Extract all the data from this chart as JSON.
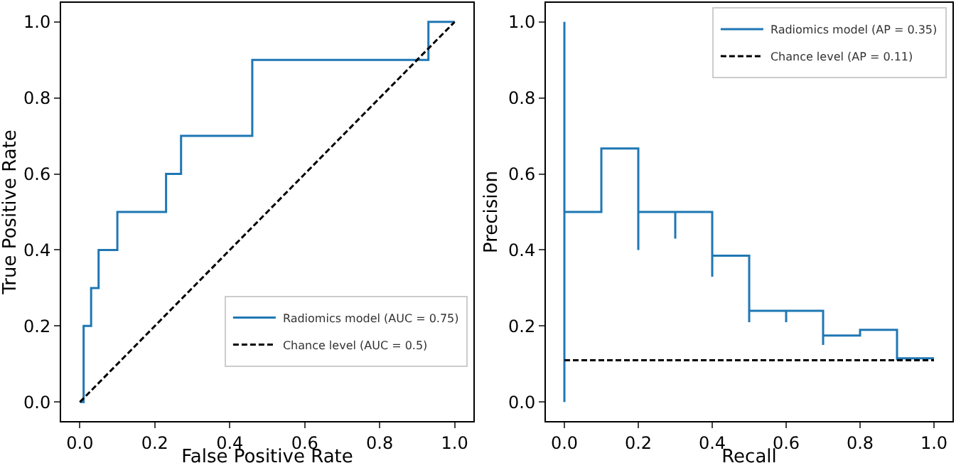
{
  "chart_data": [
    {
      "type": "line",
      "xlabel": "False Positive Rate",
      "ylabel": "True Positive Rate",
      "xlim": [
        -0.05,
        1.05
      ],
      "ylim": [
        -0.05,
        1.05
      ],
      "xticks": [
        {
          "value": 0,
          "label": "0.0"
        },
        {
          "value": 0.2,
          "label": "0.2"
        },
        {
          "value": 0.4,
          "label": "0.4"
        },
        {
          "value": 0.6,
          "label": "0.6"
        },
        {
          "value": 0.8,
          "label": "0.8"
        },
        {
          "value": 1,
          "label": "1.0"
        }
      ],
      "yticks": [
        {
          "value": 0,
          "label": "0.0"
        },
        {
          "value": 0.2,
          "label": "0.2"
        },
        {
          "value": 0.4,
          "label": "0.4"
        },
        {
          "value": 0.6,
          "label": "0.6"
        },
        {
          "value": 0.8,
          "label": "0.8"
        },
        {
          "value": 1,
          "label": "1.0"
        }
      ],
      "legend": "bottom right",
      "marker": "none",
      "series": [
        {
          "name": "Radiomics model (AUC = 0.75)",
          "type": "step",
          "color": "#1f77b4",
          "line_style": "solid",
          "x": [
            0,
            0.01,
            0.03,
            0.05,
            0.1,
            0.23,
            0.27,
            0.46,
            0.93,
            1.0
          ],
          "values": [
            0,
            0.2,
            0.3,
            0.4,
            0.5,
            0.6,
            0.7,
            0.9,
            1.0,
            1.0
          ]
        },
        {
          "name": "Chance level (AUC = 0.5)",
          "type": "line",
          "color": "#000000",
          "line_style": "dashed",
          "x": [
            0,
            1
          ],
          "values": [
            0,
            1
          ]
        }
      ]
    },
    {
      "type": "line",
      "xlabel": "Recall",
      "ylabel": "Precision",
      "xlim": [
        -0.05,
        1.05
      ],
      "ylim": [
        -0.05,
        1.05
      ],
      "xticks": [
        {
          "value": 0,
          "label": "0.0"
        },
        {
          "value": 0.2,
          "label": "0.2"
        },
        {
          "value": 0.4,
          "label": "0.4"
        },
        {
          "value": 0.6,
          "label": "0.6"
        },
        {
          "value": 0.8,
          "label": "0.8"
        },
        {
          "value": 1,
          "label": "1.0"
        }
      ],
      "yticks": [
        {
          "value": 0,
          "label": "0.0"
        },
        {
          "value": 0.2,
          "label": "0.2"
        },
        {
          "value": 0.4,
          "label": "0.4"
        },
        {
          "value": 0.6,
          "label": "0.6"
        },
        {
          "value": 0.8,
          "label": "0.8"
        },
        {
          "value": 1,
          "label": "1.0"
        }
      ],
      "legend": "top right",
      "marker": "none",
      "series": [
        {
          "name": "Radiomics model (AP = 0.35)",
          "type": "line",
          "color": "#1f77b4",
          "line_style": "solid",
          "x": [
            0,
            0,
            0,
            0.1,
            0.1,
            0.2,
            0.2,
            0.2,
            0.3,
            0.3,
            0.3,
            0.4,
            0.4,
            0.4,
            0.5,
            0.5,
            0.5,
            0.6,
            0.6,
            0.6,
            0.7,
            0.7,
            0.7,
            0.8,
            0.8,
            0.9,
            0.9,
            0.9,
            1.0
          ],
          "values": [
            0,
            1.0,
            0.5,
            0.5,
            0.667,
            0.667,
            0.4,
            0.5,
            0.5,
            0.43,
            0.5,
            0.5,
            0.33,
            0.385,
            0.385,
            0.21,
            0.24,
            0.24,
            0.21,
            0.24,
            0.24,
            0.15,
            0.175,
            0.175,
            0.19,
            0.19,
            0.11,
            0.115,
            0.115
          ]
        },
        {
          "name": "Chance level (AP = 0.11)",
          "type": "line",
          "color": "#000000",
          "line_style": "dashed",
          "x": [
            0,
            1
          ],
          "values": [
            0.11,
            0.11
          ]
        }
      ]
    }
  ]
}
